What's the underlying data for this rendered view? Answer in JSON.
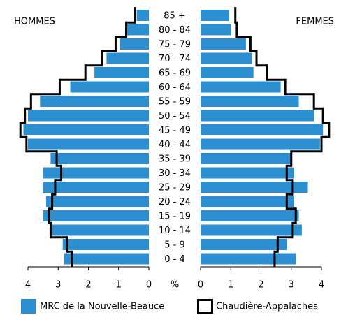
{
  "chart_data": {
    "type": "pyramid",
    "left_label": "HOMMES",
    "right_label": "FEMMES",
    "categories": [
      "85 +",
      "80 - 84",
      "75 - 79",
      "70 - 74",
      "65 - 69",
      "60 - 64",
      "55 - 59",
      "50 - 54",
      "45 - 49",
      "40 - 44",
      "35 - 39",
      "30 - 34",
      "25 - 29",
      "20 - 24",
      "15 - 19",
      "10 - 14",
      "5 - 9",
      "0 - 4"
    ],
    "series": [
      {
        "name": "MRC de la Nouvelle-Beauce",
        "color": "#2b8fd1",
        "style": "bar",
        "left": [
          0.4,
          0.75,
          0.95,
          1.4,
          1.8,
          2.6,
          3.6,
          4.0,
          4.15,
          4.0,
          3.25,
          3.5,
          3.5,
          3.4,
          3.5,
          3.2,
          2.85,
          2.8
        ],
        "right": [
          0.95,
          1.0,
          1.5,
          1.7,
          1.75,
          2.65,
          3.25,
          3.75,
          4.05,
          3.95,
          3.0,
          3.1,
          3.55,
          3.1,
          3.25,
          3.35,
          2.85,
          3.15
        ]
      },
      {
        "name": "Chaudière-Appalaches",
        "color": "#000000",
        "style": "outline",
        "left": [
          0.45,
          0.75,
          1.1,
          1.55,
          2.1,
          2.95,
          3.9,
          4.1,
          4.25,
          4.05,
          3.05,
          2.9,
          3.1,
          3.2,
          3.3,
          3.25,
          2.7,
          2.55
        ],
        "right": [
          1.15,
          1.2,
          1.65,
          1.85,
          2.2,
          2.8,
          3.75,
          4.05,
          4.25,
          4.0,
          3.0,
          2.85,
          3.05,
          2.85,
          3.15,
          3.05,
          2.55,
          2.45
        ]
      }
    ],
    "xlim": [
      0,
      4
    ],
    "xticks": [
      0,
      1,
      2,
      3,
      4
    ],
    "x_unit": "%"
  }
}
